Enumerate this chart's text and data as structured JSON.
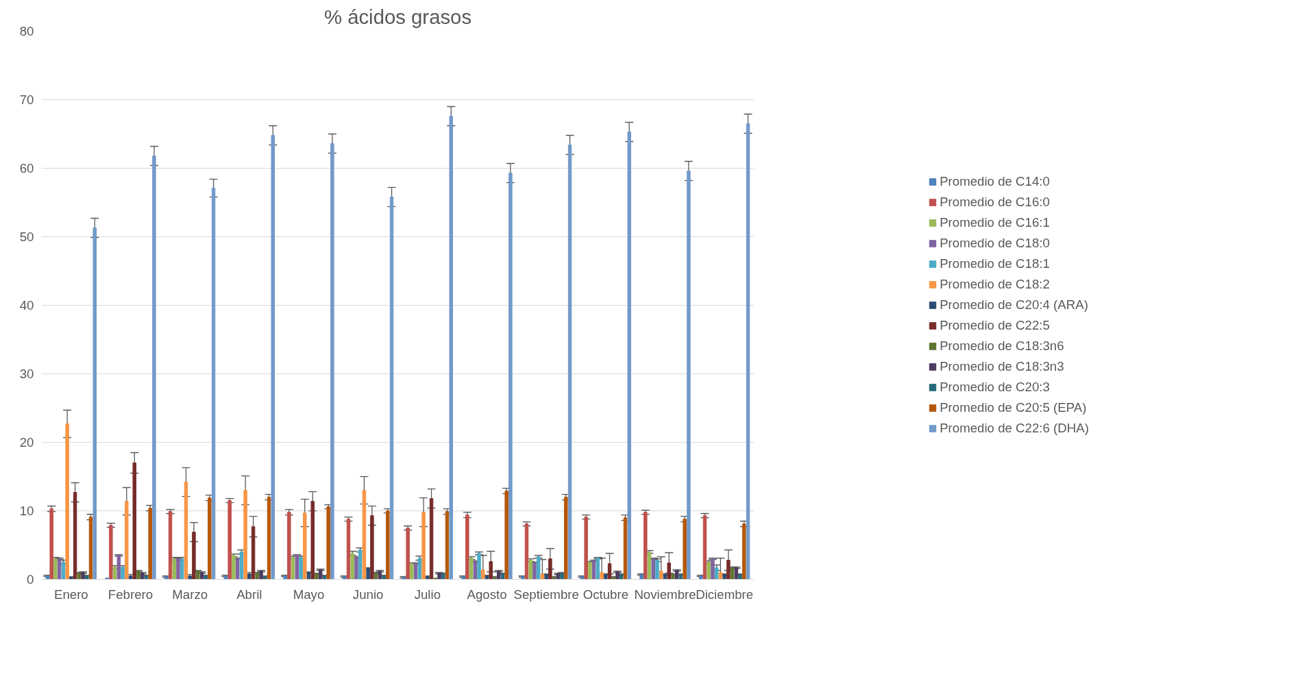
{
  "chart_data": {
    "type": "bar",
    "title": "% ácidos grasos",
    "categories": [
      "Enero",
      "Febrero",
      "Marzo",
      "Abril",
      "Mayo",
      "Junio",
      "Julio",
      "Agosto",
      "Septiembre",
      "Octubre",
      "Noviembre",
      "Diciembre"
    ],
    "ylim": [
      0,
      80
    ],
    "yticks": [
      0,
      10,
      20,
      30,
      40,
      50,
      60,
      70,
      80
    ],
    "grid": "y",
    "legend": "right",
    "series": [
      {
        "name": "Promedio de C14:0",
        "color": "#4f81bd",
        "values": [
          0.5,
          0.2,
          0.4,
          0.5,
          0.5,
          0.4,
          0.3,
          0.4,
          0.4,
          0.4,
          0.7,
          0.5
        ],
        "errors": [
          0.1,
          null,
          0.1,
          0.1,
          0.1,
          0.1,
          0.1,
          0.1,
          0.1,
          0.1,
          0.1,
          0.1
        ]
      },
      {
        "name": "Promedio de C16:0",
        "color": "#c0504d",
        "values": [
          10.3,
          7.9,
          9.9,
          11.5,
          9.8,
          8.8,
          7.5,
          9.4,
          8.1,
          9.1,
          9.8,
          9.3
        ],
        "errors": [
          0.4,
          0.3,
          0.3,
          0.3,
          0.4,
          0.3,
          0.3,
          0.4,
          0.3,
          0.3,
          0.3,
          0.3
        ]
      },
      {
        "name": "Promedio de C16:1",
        "color": "#9bbb59",
        "values": [
          3.0,
          1.8,
          3.0,
          3.5,
          3.2,
          3.8,
          2.3,
          3.1,
          2.8,
          2.5,
          4.0,
          2.5
        ],
        "errors": [
          0.2,
          0.2,
          0.2,
          0.2,
          0.2,
          0.3,
          0.1,
          0.2,
          0.2,
          0.1,
          0.2,
          0.2
        ]
      },
      {
        "name": "Promedio de C18:0",
        "color": "#8064a2",
        "values": [
          3.0,
          3.5,
          3.0,
          3.0,
          3.5,
          3.2,
          2.3,
          2.6,
          2.4,
          2.7,
          3.0,
          3.0
        ],
        "errors": [
          0.1,
          0.1,
          0.1,
          0.1,
          0.1,
          0.1,
          0.1,
          0.1,
          0.1,
          0.1,
          0.1,
          0.1
        ]
      },
      {
        "name": "Promedio de C18:1",
        "color": "#4bacc6",
        "values": [
          2.5,
          1.8,
          3.0,
          4.0,
          3.2,
          4.3,
          3.1,
          3.8,
          3.3,
          3.1,
          2.8,
          1.7
        ],
        "errors": [
          0.3,
          0.2,
          0.2,
          0.3,
          0.2,
          0.3,
          0.3,
          0.2,
          0.2,
          0.1,
          0.2,
          0.4
        ]
      },
      {
        "name": "Promedio de C18:2",
        "color": "#f79646",
        "values": [
          22.7,
          11.4,
          14.2,
          13.0,
          9.7,
          13.0,
          9.8,
          1.4,
          0.8,
          1.0,
          1.2,
          1.0
        ],
        "errors": [
          2.0,
          2.0,
          2.1,
          2.1,
          2.0,
          2.0,
          2.1,
          2.1,
          2.1,
          2.1,
          2.1,
          2.1
        ]
      },
      {
        "name": "Promedio de C20:4 (ARA)",
        "color": "#2c4d75",
        "values": [
          0.3,
          0.5,
          0.5,
          0.8,
          1.0,
          1.6,
          0.4,
          0.5,
          0.7,
          0.7,
          0.7,
          0.7
        ],
        "errors": [
          0.1,
          0.2,
          0.2,
          0.2,
          0.1,
          0.1,
          0.1,
          0.1,
          0.1,
          0.1,
          0.1,
          0.1
        ]
      },
      {
        "name": "Promedio de C22:5",
        "color": "#772c2a",
        "values": [
          12.7,
          17.0,
          6.9,
          7.7,
          11.4,
          9.3,
          11.8,
          2.6,
          3.0,
          2.3,
          2.4,
          2.8
        ],
        "errors": [
          1.4,
          1.5,
          1.4,
          1.5,
          1.4,
          1.4,
          1.4,
          1.5,
          1.5,
          1.5,
          1.5,
          1.5
        ]
      },
      {
        "name": "Promedio de C18:3n6",
        "color": "#5f7530",
        "values": [
          0.9,
          1.2,
          1.2,
          0.9,
          0.8,
          0.9,
          0.2,
          0.3,
          0.3,
          0.3,
          0.7,
          1.7
        ],
        "errors": [
          0.1,
          0.1,
          0.1,
          0.1,
          0.1,
          0.1,
          null,
          0.1,
          0.1,
          0.1,
          0.1,
          0.1
        ]
      },
      {
        "name": "Promedio de C18:3n3",
        "color": "#4d3b62",
        "values": [
          1.0,
          0.9,
          1.0,
          1.2,
          1.4,
          1.2,
          0.9,
          1.2,
          0.8,
          1.1,
          1.3,
          1.7
        ],
        "errors": [
          0.1,
          0.1,
          0.1,
          0.1,
          0.1,
          0.1,
          0.1,
          0.1,
          0.1,
          0.1,
          0.1,
          0.1
        ]
      },
      {
        "name": "Promedio de C20:3",
        "color": "#276a7c",
        "values": [
          0.5,
          0.5,
          0.5,
          0.4,
          0.5,
          0.5,
          0.8,
          0.8,
          0.9,
          0.7,
          0.7,
          0.7
        ],
        "errors": [
          0.1,
          0.1,
          0.1,
          0.1,
          0.1,
          0.1,
          0.1,
          0.1,
          0.1,
          0.1,
          0.1,
          0.1
        ]
      },
      {
        "name": "Promedio de C20:5 (EPA)",
        "color": "#b65708",
        "values": [
          9.1,
          10.4,
          11.9,
          12.0,
          10.6,
          10.0,
          9.9,
          12.9,
          12.0,
          9.0,
          8.8,
          8.1
        ],
        "errors": [
          0.4,
          0.4,
          0.4,
          0.4,
          0.3,
          0.3,
          0.4,
          0.4,
          0.4,
          0.4,
          0.4,
          0.4
        ]
      },
      {
        "name": "Promedio de C22:6 (DHA)",
        "color": "#729aca",
        "values": [
          51.3,
          61.8,
          57.1,
          64.8,
          63.6,
          55.8,
          67.6,
          59.3,
          63.4,
          65.3,
          59.6,
          66.5
        ],
        "errors": [
          1.4,
          1.4,
          1.3,
          1.4,
          1.4,
          1.4,
          1.4,
          1.4,
          1.4,
          1.4,
          1.4,
          1.4
        ]
      }
    ]
  }
}
